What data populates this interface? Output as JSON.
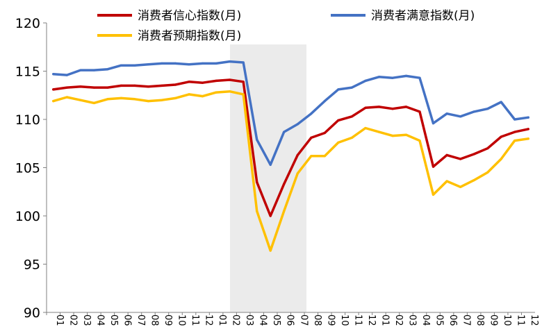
{
  "chart_data": {
    "type": "line",
    "x_tick_labels": [
      "01",
      "02",
      "03",
      "04",
      "05",
      "06",
      "07",
      "08",
      "09",
      "10",
      "11",
      "12",
      "01",
      "02",
      "03",
      "04",
      "05",
      "06",
      "07",
      "08",
      "09",
      "10",
      "11",
      "12",
      "01",
      "02",
      "03",
      "04",
      "05",
      "06",
      "07",
      "08",
      "09",
      "10",
      "11",
      "12"
    ],
    "series": [
      {
        "name": "消费者信心指数(月)",
        "color": "#c00000",
        "values": [
          113.1,
          113.3,
          113.4,
          113.3,
          113.3,
          113.5,
          113.5,
          113.4,
          113.5,
          113.6,
          113.9,
          113.8,
          114.0,
          114.1,
          113.9,
          103.5,
          100.0,
          103.3,
          106.3,
          108.1,
          108.6,
          109.9,
          110.3,
          111.2,
          111.3,
          111.1,
          111.3,
          110.8,
          105.1,
          106.3,
          105.9,
          106.4,
          107.0,
          108.2,
          108.7,
          109.0
        ]
      },
      {
        "name": "消费者满意指数(月)",
        "color": "#4472c4",
        "values": [
          114.7,
          114.6,
          115.1,
          115.1,
          115.2,
          115.6,
          115.6,
          115.7,
          115.8,
          115.8,
          115.7,
          115.8,
          115.8,
          116.0,
          115.9,
          107.9,
          105.3,
          108.7,
          109.5,
          110.6,
          111.9,
          113.1,
          113.3,
          114.0,
          114.4,
          114.3,
          114.5,
          114.3,
          109.6,
          110.6,
          110.3,
          110.8,
          111.1,
          111.8,
          110.0,
          110.2
        ]
      },
      {
        "name": "消费者预期指数(月)",
        "color": "#ffc000",
        "values": [
          111.9,
          112.3,
          112.0,
          111.7,
          112.1,
          112.2,
          112.1,
          111.9,
          112.0,
          112.2,
          112.6,
          112.4,
          112.8,
          112.9,
          112.6,
          100.5,
          96.4,
          100.5,
          104.4,
          106.2,
          106.2,
          107.6,
          108.1,
          109.1,
          108.7,
          108.3,
          108.4,
          107.8,
          102.2,
          103.6,
          103.0,
          103.7,
          104.5,
          105.9,
          107.8,
          108.0
        ]
      }
    ],
    "ylim": [
      90,
      120
    ],
    "yticks": [
      90,
      95,
      100,
      105,
      110,
      115,
      120
    ],
    "shaded_range": [
      "03",
      "08"
    ],
    "grid": false,
    "legend_position": "top"
  }
}
